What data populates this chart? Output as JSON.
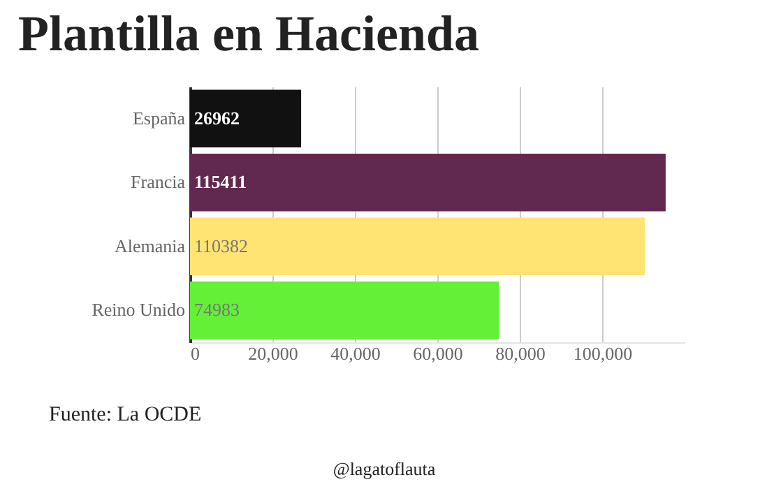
{
  "chart_data": {
    "type": "bar",
    "title": "Plantilla en Hacienda",
    "orientation": "horizontal",
    "categories": [
      "España",
      "Francia",
      "Alemania",
      "Reino Unido"
    ],
    "values": [
      26962,
      115411,
      110382,
      74983
    ],
    "colors": [
      "#111111",
      "#622950",
      "#ffe473",
      "#63f037"
    ],
    "xlim": [
      0,
      120000
    ],
    "xticks": [
      0,
      {
        "value": 20000,
        "label": "20,000"
      },
      {
        "value": 40000,
        "label": "40,000"
      },
      {
        "value": 60000,
        "label": "60,000"
      },
      {
        "value": 80000,
        "label": "80,000"
      },
      {
        "value": 100000,
        "label": "100,000"
      }
    ],
    "grid": "x",
    "data_labels": true,
    "annotations": [
      "Fuente: La OCDE",
      "@lagatoflauta"
    ]
  }
}
